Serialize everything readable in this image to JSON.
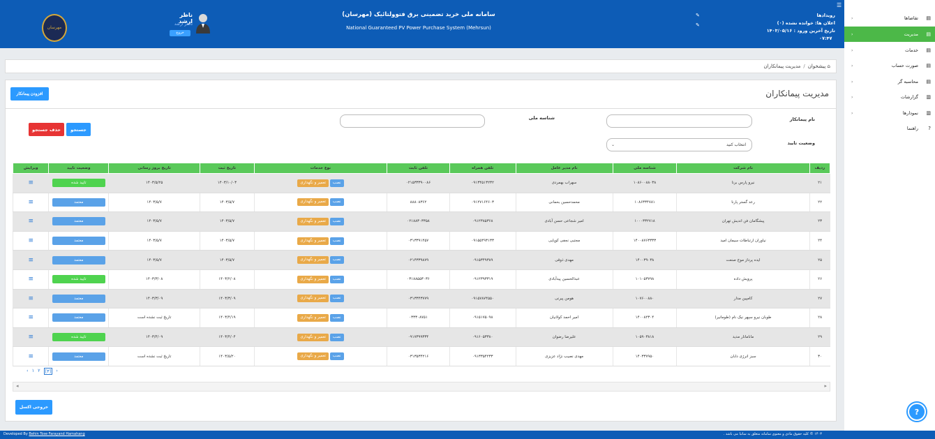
{
  "header": {
    "system_title_fa": "سامانه ملی خرید تضمینی برق فتوولتائیک (مهرسان)",
    "system_title_en": "National Guaranteed PV Power Purchase System (Mehrsun)",
    "user_name": "ناظر ارشد",
    "user_role": "ناظر ارشد",
    "logout_label": "خروج",
    "events_title": "رویدادها",
    "unread_notices": "اعلان ها: خوانده نشده (۰)",
    "last_login_label": "تاریخ آخرین ورود :",
    "last_login_date": "۱۴۰۳/۰۵/۱۶",
    "last_login_time": "۰۷:۴۷",
    "logo_text": "مهرسان"
  },
  "sidebar": {
    "items": [
      {
        "label": "تقاضاها",
        "icon": "list-icon"
      },
      {
        "label": "مدیریت",
        "icon": "list-icon"
      },
      {
        "label": "خدمات",
        "icon": "list-icon"
      },
      {
        "label": "صورت حساب",
        "icon": "list-icon"
      },
      {
        "label": "محاسبه گر",
        "icon": "calculator-icon"
      },
      {
        "label": "گزارشات",
        "icon": "chart-icon"
      },
      {
        "label": "نمودارها",
        "icon": "chart-icon"
      },
      {
        "label": "راهنما",
        "icon": "help-icon"
      }
    ],
    "active_index": 1
  },
  "breadcrumb": {
    "home": "پیشخوان",
    "current": "مدیریت پیمانکاران"
  },
  "page": {
    "title": "مدیریت پیمانکاران",
    "add_button": "افزودن پیمانکار",
    "filters": {
      "contractor_name_label": "نام پیمانکار",
      "national_id_label": "شناسه ملی",
      "approval_status_label": "وضعیت تایید",
      "approval_status_value": "انتخاب کنید",
      "search_button": "جستجو",
      "clear_button": "حذف جستجو"
    },
    "excel_button": "خروجی اکسل",
    "help_label": "?"
  },
  "table": {
    "columns": [
      "ردیف",
      "نام شرکت",
      "شناسه ملی",
      "نام مدیر عامل",
      "تلفن همراه",
      "تلفن ثابت",
      "نوع خدمات",
      "تاریخ ثبت",
      "تاریخ بروز رسانی",
      "وضعیت تایید",
      "ویرایش"
    ],
    "service_install": "نصب",
    "service_repair": "تعمیر و نگهداری",
    "rows": [
      {
        "no": "۲۱",
        "company": "نیرو پارس برنا",
        "nid": "۱۰۸۶۰۰۸۸۰۳۸",
        "ceo": "سهراب بهمردی",
        "mobile": "۰۹۱۳۴۵۱۳۲۳۲",
        "phone": "۰۲۱۵۳۳۳۹۰۰۸۶",
        "reg": "۱۴۰۳/۱۰/۰۳",
        "upd": "۱۴۰۳/۵/۲۵",
        "status": "تایید شده",
        "status_type": "green"
      },
      {
        "no": "۲۲",
        "company": "رعد گستر پارنا",
        "nid": "۱۰۸۶۳۳۴۷۸۱",
        "ceo": "محمدحسین بحمانی",
        "mobile": "۰۹۱۲۷۱۶۴۶۰۳",
        "phone": "۸۸۸۰۸۳۶۲",
        "reg": "۱۴۰۳/۵/۷",
        "upd": "۱۴۰۳/۵/۷",
        "status": "معتمد",
        "status_type": "blue"
      },
      {
        "no": "۲۳",
        "company": "پیشگامان فن اندیش تهران",
        "nid": "۱۰۰۰۳۳۲۷۱۸",
        "ceo": "امیر شجاعی حسن آبادی",
        "mobile": "۰۹۱۲۳۸۵۳۶۸",
        "phone": "۰۲۱۸۸۳۰۳۳۵۸",
        "reg": "۱۴۰۳/۵/۷",
        "upd": "۱۴۰۳/۵/۷",
        "status": "معتمد",
        "status_type": "blue"
      },
      {
        "no": "۲۴",
        "company": "نیاوران ارتباطات سیمان امید",
        "nid": "۱۴۰۰۸۷۶۳۳۳۳",
        "ceo": "مجتبی نجفی کوپایی",
        "mobile": "۰۹۱۵۵۴۹۳۱۳۳",
        "phone": "۰۳۱۳۳۹۱۴۵۷",
        "reg": "۱۴۰۳/۵/۷",
        "upd": "۱۴۰۳/۵/۷",
        "status": "معتمد",
        "status_type": "blue"
      },
      {
        "no": "۲۵",
        "company": "ایده پرداز موج صنعت",
        "nid": "۱۴۰۰۳۹۰۳۸",
        "ceo": "مهدی ذوقی",
        "mobile": "۰۹۱۵۳۴۹۳۸۹",
        "phone": "۰۲۱۴۳۳۹۸۷۹",
        "reg": "۱۴۰۳/۵/۷",
        "upd": "۱۴۰۳/۵/۷",
        "status": "معتمد",
        "status_type": "blue"
      },
      {
        "no": "۲۶",
        "company": "پرویش داده",
        "nid": "۱۰۱۰۵۳۷۹۸",
        "ceo": "عبدالحسین پیدآبادی",
        "mobile": "۰۹۱۲۳۹۳۳۱۹",
        "phone": "۰۳۱۸۸۵۵۳۰۳۶",
        "reg": "۱۴۰۳/۲/۰۸",
        "upd": "۱۴۰۳/۳/۰۸",
        "status": "تایید شده",
        "status_type": "green"
      },
      {
        "no": "۲۷",
        "company": "کامپین مدار",
        "nid": "۱۰۷۶۰۰۸۸۰",
        "ceo": "هومن پیرنی",
        "mobile": "۰۹۱۵۷۸۷۴۵۵۰",
        "phone": "۰۳۱۳۳۴۳۷۷۹",
        "reg": "۱۴۰۳/۳/۰۹",
        "upd": "۱۴۰۳/۳/۰۹",
        "status": "معتمد",
        "status_type": "blue"
      },
      {
        "no": "۲۸",
        "company": "طوبان نیرو سپهر نیک نام (طومانیر)",
        "nid": "۱۴۰۰۸۲۳۰۴",
        "ceo": "امیر احمد کولانیان",
        "mobile": "۰۹۱۵۱۷۵۰۹۸",
        "phone": "۰۳۳۳۰۸۷۵۱",
        "reg": "۱۴۰۳/۴/۱۹",
        "upd": "تاریخ ثبت نشده است",
        "status": "معتمد",
        "status_type": "blue"
      },
      {
        "no": "۲۹",
        "company": "مانامانار مدید",
        "nid": "۱۰۵۹۰۳۸۱۸",
        "ceo": "علیرضا رضوان",
        "mobile": "۰۹۱۶۰۵۳۳۸۰",
        "phone": "۰۹۱۷۳۹۹۳۳۴",
        "reg": "۱۴۰۳/۴/۰۴",
        "upd": "۱۴۰۳/۴/۰۹",
        "status": "تایید شده",
        "status_type": "green"
      },
      {
        "no": "۳۰",
        "company": "سبز انرژی دابان",
        "nid": "۱۴۰۳۳۷۹۵۰",
        "ceo": "مهدی نصیب نژاد عزیزی",
        "mobile": "۰۹۱۳۳۵۴۲۳۳",
        "phone": "۰۳۱۳۵۳۴۲۱۶",
        "reg": "۱۴۰۳/۵/۲۰",
        "upd": "تاریخ ثبت نشده است",
        "status": "معتمد",
        "status_type": "blue"
      }
    ]
  },
  "pager": {
    "pages": [
      "‹",
      "۱",
      "۲",
      "[۳]",
      "›"
    ]
  },
  "footer": {
    "dev_prefix": "Developed By",
    "dev_name": "Behin Tose Farayand Hamahang",
    "copyright": "۱۴۰۳ © کلیه حقوق مادی و معنوی سامانه متعلق به ساتبا می باشد ."
  }
}
